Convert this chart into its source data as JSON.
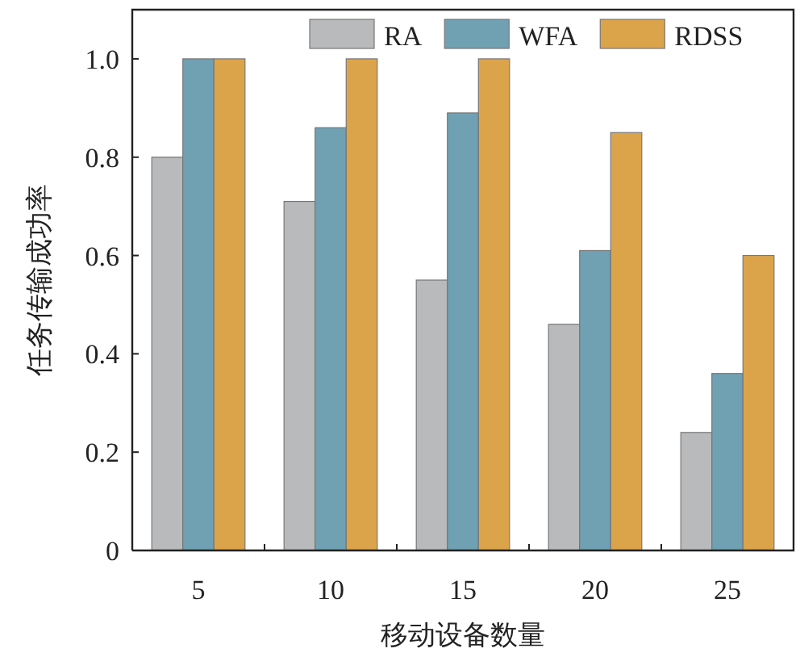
{
  "chart_data": {
    "type": "bar",
    "xlabel": "移动设备数量",
    "ylabel": "任务传输成功率",
    "categories": [
      "5",
      "10",
      "15",
      "20",
      "25"
    ],
    "series": [
      {
        "name": "RA",
        "color": "#b9babc",
        "values": [
          0.8,
          0.71,
          0.55,
          0.46,
          0.24
        ]
      },
      {
        "name": "WFA",
        "color": "#6fa1b3",
        "values": [
          1.0,
          0.86,
          0.89,
          0.61,
          0.36
        ]
      },
      {
        "name": "RDSS",
        "color": "#dca44a",
        "values": [
          1.0,
          1.0,
          1.0,
          0.85,
          0.6
        ]
      }
    ],
    "ylim": [
      0,
      1.1
    ],
    "yticks": [
      0,
      0.2,
      0.4,
      0.6,
      0.8,
      {
        "value": 1,
        "label": "1.0"
      }
    ],
    "legend": "top right",
    "grid": false
  }
}
